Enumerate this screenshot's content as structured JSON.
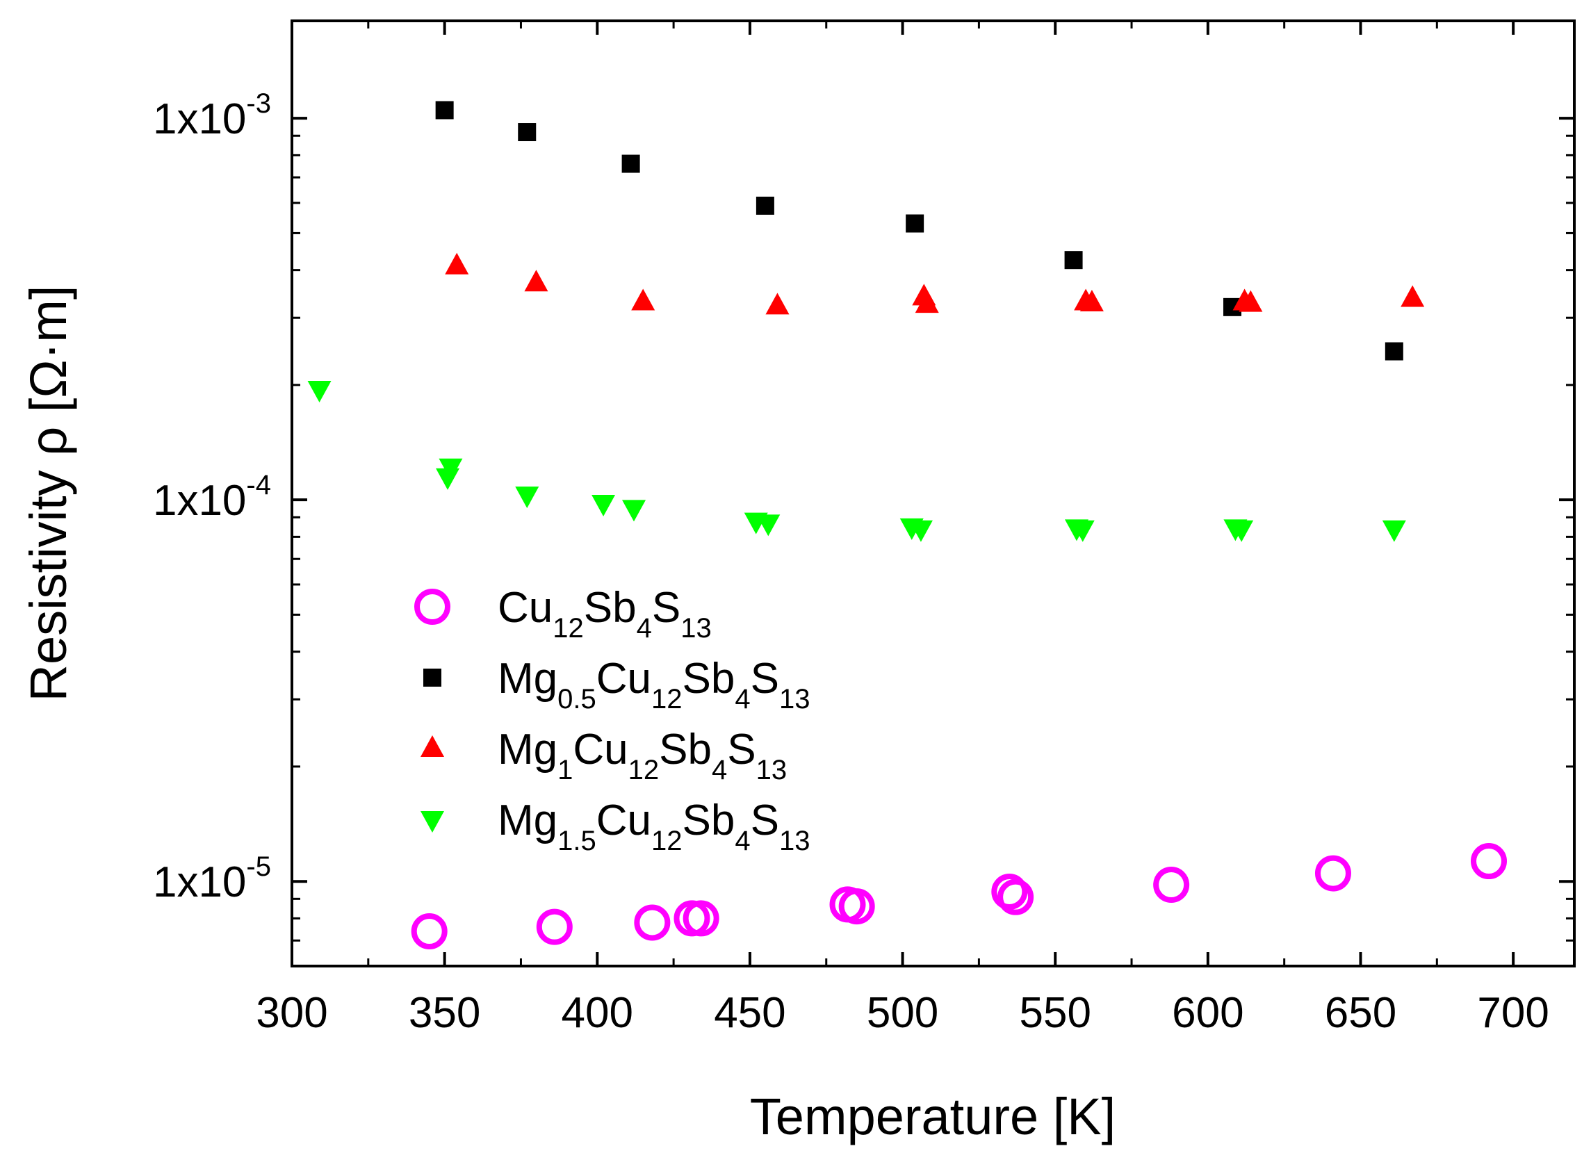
{
  "chart_data": {
    "type": "scatter",
    "title": "",
    "xlabel": "Temperature [K]",
    "ylabel": "Resistivity ρ [Ω·m]",
    "xlim": [
      300,
      720
    ],
    "ylim": [
      6e-06,
      0.0018
    ],
    "yscale": "log",
    "x_ticks": [
      300,
      350,
      400,
      450,
      500,
      550,
      600,
      650,
      700
    ],
    "x_tick_labels": [
      "300",
      "350",
      "400",
      "450",
      "500",
      "550",
      "600",
      "650",
      "700"
    ],
    "y_ticks": [
      1e-05,
      0.0001,
      0.001
    ],
    "y_tick_labels": [
      {
        "mantissa": "1x10",
        "exponent": "-5"
      },
      {
        "mantissa": "1x10",
        "exponent": "-4"
      },
      {
        "mantissa": "1x10",
        "exponent": "-3"
      }
    ],
    "legend_position": "lower-left",
    "series": [
      {
        "name": "Cu12Sb4S13",
        "label_parts": [
          [
            "Cu",
            ""
          ],
          [
            "12",
            "sub"
          ],
          [
            "Sb",
            ""
          ],
          [
            "4",
            "sub"
          ],
          [
            "S",
            ""
          ],
          [
            "13",
            "sub"
          ]
        ],
        "marker": "circle-open",
        "color": "#ff00ff",
        "x": [
          345,
          386,
          418,
          431,
          434,
          482,
          485,
          535,
          537,
          588,
          641,
          692
        ],
        "y": [
          7.4e-06,
          7.6e-06,
          7.8e-06,
          8e-06,
          8e-06,
          8.7e-06,
          8.6e-06,
          9.4e-06,
          9.1e-06,
          9.8e-06,
          1.05e-05,
          1.13e-05
        ]
      },
      {
        "name": "Mg0.5Cu12Sb4S13",
        "label_parts": [
          [
            "Mg",
            ""
          ],
          [
            "0.5",
            "sub"
          ],
          [
            "Cu",
            ""
          ],
          [
            "12",
            "sub"
          ],
          [
            "Sb",
            ""
          ],
          [
            "4",
            "sub"
          ],
          [
            "S",
            ""
          ],
          [
            "13",
            "sub"
          ]
        ],
        "marker": "square",
        "color": "#000000",
        "x": [
          350,
          377,
          411,
          455,
          504,
          556,
          608,
          661
        ],
        "y": [
          0.00105,
          0.00092,
          0.00076,
          0.00059,
          0.00053,
          0.000425,
          0.00032,
          0.000245
        ]
      },
      {
        "name": "Mg1Cu12Sb4S13",
        "label_parts": [
          [
            "Mg",
            ""
          ],
          [
            "1",
            "sub"
          ],
          [
            "Cu",
            ""
          ],
          [
            "12",
            "sub"
          ],
          [
            "Sb",
            ""
          ],
          [
            "4",
            "sub"
          ],
          [
            "S",
            ""
          ],
          [
            "13",
            "sub"
          ]
        ],
        "marker": "triangle-up",
        "color": "#ff0000",
        "x": [
          354,
          380,
          415,
          459,
          507,
          508,
          560,
          562,
          612,
          614,
          667
        ],
        "y": [
          0.00041,
          0.00037,
          0.00033,
          0.000322,
          0.00034,
          0.000325,
          0.00033,
          0.000328,
          0.00033,
          0.000327,
          0.000337
        ]
      },
      {
        "name": "Mg1.5Cu12Sb4S13",
        "label_parts": [
          [
            "Mg",
            ""
          ],
          [
            "1.5",
            "sub"
          ],
          [
            "Cu",
            ""
          ],
          [
            "12",
            "sub"
          ],
          [
            "Sb",
            ""
          ],
          [
            "4",
            "sub"
          ],
          [
            "S",
            ""
          ],
          [
            "13",
            "sub"
          ]
        ],
        "marker": "triangle-down",
        "color": "#00ff00",
        "x": [
          309,
          352,
          351,
          377,
          402,
          412,
          452,
          456,
          503,
          506,
          557,
          559,
          609,
          611,
          661
        ],
        "y": [
          0.000195,
          0.000122,
          0.000115,
          0.000103,
          9.8e-05,
          9.5e-05,
          8.8e-05,
          8.7e-05,
          8.5e-05,
          8.4e-05,
          8.45e-05,
          8.4e-05,
          8.45e-05,
          8.4e-05,
          8.4e-05
        ]
      }
    ]
  }
}
